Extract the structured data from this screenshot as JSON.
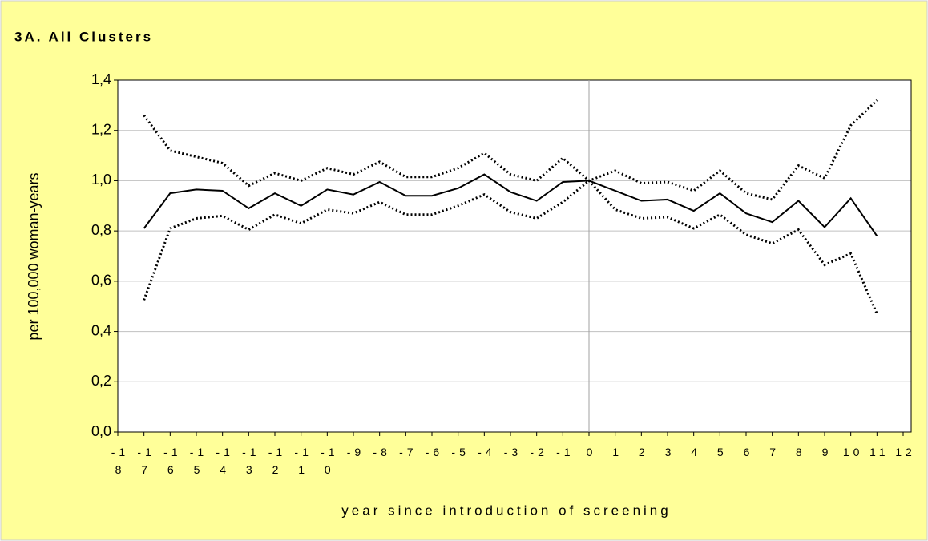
{
  "chart_data": {
    "type": "line",
    "title": "3A. All Clusters",
    "y_label": "per 100,000 woman-years",
    "x_label": "year since introduction of screening",
    "x": [
      -17,
      -16,
      -15,
      -14,
      -13,
      -12,
      -11,
      -10,
      -9,
      -8,
      -7,
      -6,
      -5,
      -4,
      -3,
      -2,
      -1,
      0,
      1,
      2,
      3,
      4,
      5,
      6,
      7,
      8,
      9,
      10,
      11
    ],
    "series": [
      {
        "color": "#000000",
        "dash": "solid",
        "values": [
          0.81,
          0.95,
          0.965,
          0.96,
          0.89,
          0.95,
          0.9,
          0.965,
          0.945,
          0.995,
          0.94,
          0.94,
          0.97,
          1.025,
          0.955,
          0.92,
          0.995,
          1.0,
          0.96,
          0.92,
          0.925,
          0.88,
          0.95,
          0.87,
          0.835,
          0.92,
          0.815,
          0.93,
          0.78
        ]
      },
      {
        "color": "#000000",
        "dash": "dotted",
        "values": [
          1.26,
          1.12,
          1.095,
          1.07,
          0.98,
          1.03,
          1.0,
          1.05,
          1.025,
          1.075,
          1.015,
          1.015,
          1.05,
          1.11,
          1.025,
          1.0,
          1.09,
          1.0,
          1.04,
          0.99,
          0.995,
          0.96,
          1.04,
          0.95,
          0.925,
          1.06,
          1.01,
          1.22,
          1.32
        ]
      },
      {
        "color": "#000000",
        "dash": "dotted",
        "values": [
          0.525,
          0.81,
          0.85,
          0.86,
          0.805,
          0.865,
          0.83,
          0.885,
          0.87,
          0.915,
          0.865,
          0.865,
          0.9,
          0.945,
          0.875,
          0.85,
          0.915,
          1.0,
          0.885,
          0.85,
          0.855,
          0.81,
          0.865,
          0.785,
          0.75,
          0.805,
          0.665,
          0.71,
          0.47
        ]
      }
    ],
    "xlim": [
      -18,
      12
    ],
    "xticks": [
      -18,
      -17,
      -16,
      -15,
      -14,
      -13,
      -12,
      -11,
      -10,
      -9,
      -8,
      -7,
      -6,
      -5,
      -4,
      -3,
      -2,
      -1,
      0,
      1,
      2,
      3,
      4,
      5,
      6,
      7,
      8,
      9,
      10,
      11,
      12
    ],
    "ylim": [
      0,
      1.4
    ],
    "yticks": [
      {
        "value": 0,
        "label": "0,0"
      },
      {
        "value": 0.2,
        "label": "0,2"
      },
      {
        "value": 0.4,
        "label": "0,4"
      },
      {
        "value": 0.6,
        "label": "0,6"
      },
      {
        "value": 0.8,
        "label": "0,8"
      },
      {
        "value": 1.0,
        "label": "1,0"
      },
      {
        "value": 1.2,
        "label": "1,2"
      },
      {
        "value": 1.4,
        "label": "1,4"
      }
    ],
    "grid": true,
    "vline": 0,
    "background": "#ffff99"
  }
}
